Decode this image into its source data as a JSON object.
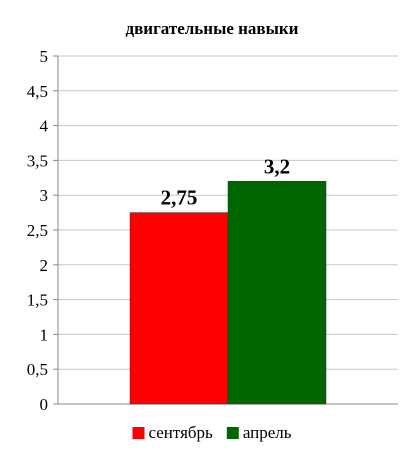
{
  "chart_data": {
    "type": "bar",
    "title": "двигательные навыки",
    "xlabel": "",
    "ylabel": "",
    "ylim": [
      0,
      5
    ],
    "yticks": [
      "0",
      "0,5",
      "1",
      "1,5",
      "2",
      "2,5",
      "3",
      "3,5",
      "4",
      "4,5",
      "5"
    ],
    "grid": true,
    "legend": "bottom",
    "series": [
      {
        "name": "сентябрь",
        "value": 2.75,
        "label": "2,75",
        "color": "#ff0000"
      },
      {
        "name": "апрель",
        "value": 3.2,
        "label": "3,2",
        "color": "#006600"
      }
    ]
  }
}
